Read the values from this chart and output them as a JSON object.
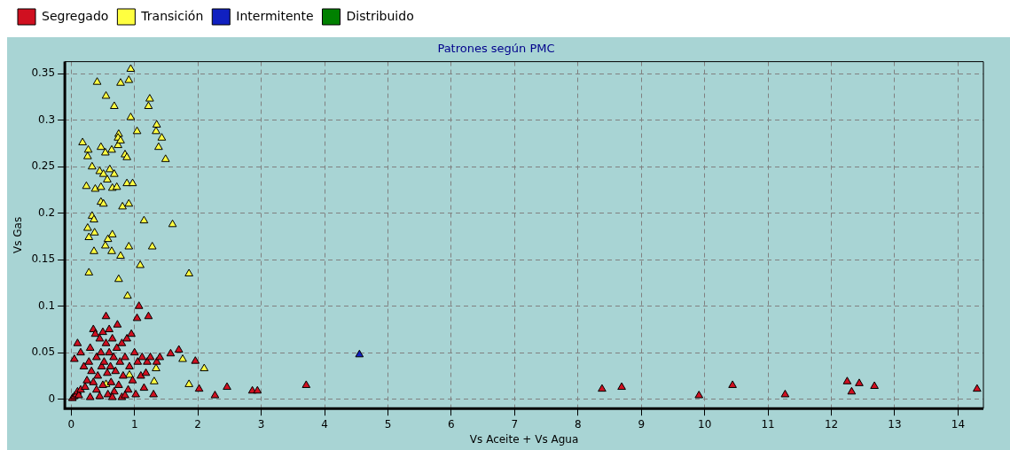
{
  "chart_data": {
    "type": "scatter",
    "title": "Patrones según PMC",
    "xlabel": "Vs Aceite + Vs Agua",
    "ylabel": "Vs Gas",
    "xlim": [
      -0.1,
      14.4
    ],
    "ylim": [
      -0.01,
      0.363
    ],
    "xticks": [
      0,
      1,
      2,
      3,
      4,
      5,
      6,
      7,
      8,
      9,
      10,
      11,
      12,
      13,
      14
    ],
    "yticks": [
      0,
      0.05,
      0.1,
      0.15,
      0.2,
      0.25,
      0.3,
      0.35
    ],
    "grid": true,
    "legend": "top left",
    "marker": "triangle",
    "series": [
      {
        "name": "Segregado",
        "color": "#d01020",
        "x": [
          0.02,
          0.05,
          0.08,
          0.1,
          0.12,
          0.15,
          0.05,
          0.1,
          0.15,
          0.2,
          0.22,
          0.25,
          0.28,
          0.3,
          0.32,
          0.35,
          0.38,
          0.4,
          0.4,
          0.42,
          0.45,
          0.47,
          0.48,
          0.5,
          0.5,
          0.52,
          0.55,
          0.55,
          0.57,
          0.58,
          0.6,
          0.6,
          0.62,
          0.63,
          0.65,
          0.67,
          0.68,
          0.7,
          0.72,
          0.73,
          0.75,
          0.77,
          0.8,
          0.8,
          0.82,
          0.85,
          0.88,
          0.9,
          0.92,
          0.95,
          0.97,
          1.0,
          1.02,
          1.05,
          1.07,
          1.04,
          1.1,
          1.12,
          1.15,
          1.2,
          1.22,
          1.25,
          1.3,
          1.35,
          1.4,
          1.57,
          1.7,
          1.96,
          2.02,
          0.3,
          0.45,
          0.65,
          0.35,
          0.85,
          1.18,
          2.27,
          2.46,
          2.86,
          2.94,
          3.71,
          8.38,
          8.69,
          9.91,
          10.44,
          11.27,
          12.25,
          12.32,
          12.44,
          12.68,
          14.3
        ],
        "values": [
          0.001,
          0.003,
          0.005,
          0.008,
          0.004,
          0.01,
          0.043,
          0.06,
          0.05,
          0.035,
          0.013,
          0.02,
          0.04,
          0.055,
          0.03,
          0.075,
          0.07,
          0.045,
          0.01,
          0.025,
          0.065,
          0.05,
          0.035,
          0.015,
          0.072,
          0.04,
          0.089,
          0.06,
          0.028,
          0.005,
          0.05,
          0.075,
          0.035,
          0.018,
          0.065,
          0.045,
          0.008,
          0.03,
          0.055,
          0.08,
          0.015,
          0.04,
          0.06,
          0.002,
          0.025,
          0.045,
          0.065,
          0.01,
          0.035,
          0.07,
          0.02,
          0.05,
          0.005,
          0.04,
          0.1,
          0.087,
          0.025,
          0.045,
          0.012,
          0.04,
          0.089,
          0.045,
          0.005,
          0.04,
          0.045,
          0.049,
          0.053,
          0.041,
          0.011,
          0.002,
          0.003,
          0.002,
          0.018,
          0.004,
          0.028,
          0.004,
          0.013,
          0.009,
          0.009,
          0.015,
          0.011,
          0.013,
          0.004,
          0.015,
          0.005,
          0.019,
          0.008,
          0.017,
          0.014,
          0.011
        ]
      },
      {
        "name": "Transición",
        "color": "#ffff40",
        "x": [
          0.94,
          0.41,
          0.78,
          0.91,
          0.55,
          0.68,
          0.94,
          1.24,
          1.22,
          1.04,
          1.35,
          1.34,
          1.43,
          1.38,
          1.49,
          0.18,
          0.27,
          0.26,
          0.47,
          0.54,
          0.64,
          0.74,
          0.75,
          0.74,
          0.78,
          0.85,
          0.88,
          0.33,
          0.45,
          0.51,
          0.61,
          0.68,
          0.57,
          0.24,
          0.38,
          0.47,
          0.65,
          0.72,
          0.88,
          0.97,
          0.47,
          0.51,
          0.81,
          0.91,
          0.33,
          0.36,
          0.26,
          0.37,
          0.28,
          1.15,
          1.6,
          0.58,
          0.65,
          0.54,
          0.64,
          0.78,
          0.36,
          1.28,
          0.91,
          0.28,
          0.75,
          1.09,
          1.86,
          0.89,
          1.34,
          1.31,
          1.86,
          2.1,
          0.55,
          1.76,
          0.92
        ],
        "values": [
          0.355,
          0.341,
          0.34,
          0.343,
          0.326,
          0.315,
          0.303,
          0.323,
          0.315,
          0.288,
          0.295,
          0.288,
          0.281,
          0.271,
          0.258,
          0.276,
          0.268,
          0.261,
          0.271,
          0.265,
          0.268,
          0.273,
          0.285,
          0.281,
          0.278,
          0.263,
          0.26,
          0.25,
          0.245,
          0.242,
          0.247,
          0.242,
          0.236,
          0.229,
          0.226,
          0.228,
          0.227,
          0.228,
          0.232,
          0.232,
          0.212,
          0.21,
          0.207,
          0.21,
          0.197,
          0.193,
          0.184,
          0.179,
          0.174,
          0.192,
          0.188,
          0.172,
          0.177,
          0.165,
          0.159,
          0.154,
          0.159,
          0.164,
          0.164,
          0.136,
          0.129,
          0.144,
          0.135,
          0.111,
          0.033,
          0.019,
          0.016,
          0.033,
          0.016,
          0.043,
          0.026
        ]
      },
      {
        "name": "Intermitente",
        "color": "#1020c0",
        "x": [
          4.55
        ],
        "values": [
          0.048
        ]
      },
      {
        "name": "Distribuido",
        "color": "#008000"
      }
    ]
  }
}
